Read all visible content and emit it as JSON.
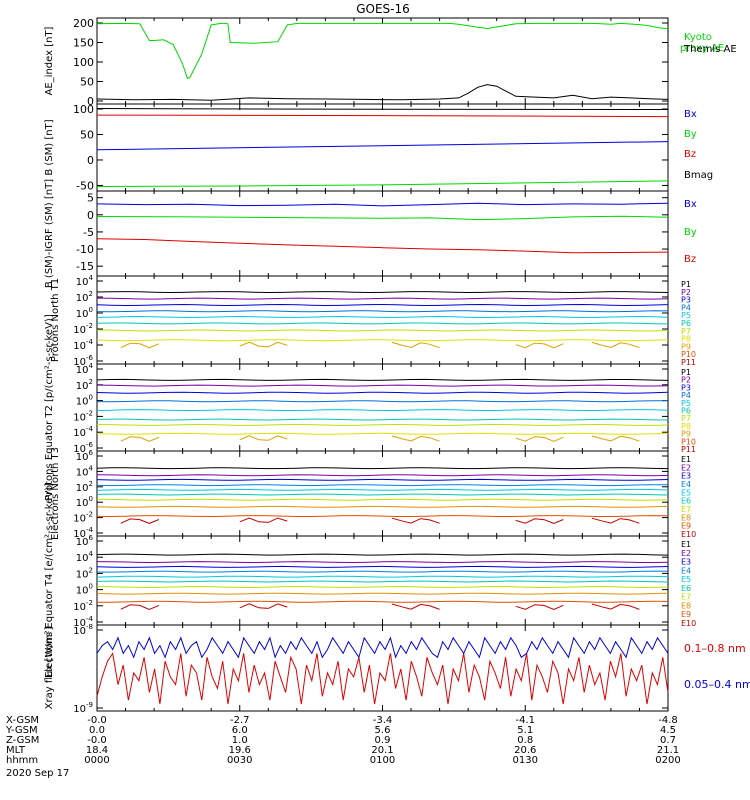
{
  "title": "GOES-16",
  "colors": {
    "green": "#00d800",
    "black": "#000000",
    "blue": "#0000e0",
    "red": "#e00000",
    "p_ch": [
      "#000000",
      "#7a00a0",
      "#0000e0",
      "#0070e0",
      "#00c8e0",
      "#00c8b0",
      "#c0e000",
      "#e0e000",
      "#e0a000",
      "#e05000",
      "#c00000"
    ],
    "e_ch": [
      "#000000",
      "#7a00a0",
      "#0000e0",
      "#0080e0",
      "#00c8e0",
      "#00c8b0",
      "#c0e000",
      "#e09000",
      "#e05000",
      "#c00000"
    ]
  },
  "chart_data": [
    {
      "type": "line",
      "ylabel": "AE_index [nT]",
      "ylim": [
        0,
        200
      ],
      "yticks": [
        "0",
        "50",
        "100",
        "150",
        "200"
      ],
      "legend": [
        "Kyoto proxy AE",
        "Themis AE"
      ],
      "series": [
        {
          "name": "Kyoto proxy AE",
          "color_key": "green",
          "x": [
            0,
            5,
            9,
            11,
            12,
            14,
            16,
            17,
            18,
            19,
            19.5,
            20,
            22,
            24,
            26,
            27,
            27.5,
            28,
            33,
            38,
            40,
            42,
            44,
            46,
            48,
            50,
            53,
            56,
            60,
            66,
            70,
            74,
            76,
            78,
            80,
            82,
            84,
            88,
            92,
            96,
            100,
            102,
            104,
            106,
            108,
            110,
            114,
            116,
            118,
            120
          ],
          "y": [
            198,
            199,
            198,
            155,
            155,
            157,
            145,
            120,
            95,
            58,
            60,
            72,
            120,
            195,
            199,
            199,
            198,
            150,
            148,
            152,
            195,
            199,
            199,
            199,
            199,
            199,
            199,
            199,
            199,
            199,
            199,
            199,
            197,
            193,
            189,
            186,
            190,
            198,
            199,
            199,
            199,
            199,
            199,
            198,
            197,
            199,
            196,
            193,
            188,
            185
          ]
        },
        {
          "name": "Themis AE",
          "color_key": "black",
          "x": [
            0,
            8,
            16,
            24,
            32,
            40,
            48,
            56,
            64,
            72,
            76,
            78,
            80,
            82,
            84,
            86,
            88,
            92,
            96,
            100,
            104,
            108,
            112,
            116,
            120
          ],
          "y": [
            5,
            3,
            4,
            2,
            8,
            6,
            5,
            4,
            3,
            5,
            8,
            20,
            35,
            42,
            38,
            25,
            12,
            10,
            8,
            15,
            6,
            10,
            8,
            6,
            4
          ]
        }
      ]
    },
    {
      "type": "line",
      "ylabel": "B (SM) [nT]",
      "ylim": [
        -55,
        100
      ],
      "yticks": [
        "-50",
        "0",
        "50",
        "100"
      ],
      "legend": [
        "Bx",
        "By",
        "Bz",
        "Bmag"
      ],
      "series": [
        {
          "name": "Bx",
          "color_key": "blue",
          "x": [
            0,
            120
          ],
          "y": [
            20,
            36
          ]
        },
        {
          "name": "By",
          "color_key": "green",
          "x": [
            0,
            30,
            60,
            90,
            120
          ],
          "y": [
            -52,
            -51,
            -49,
            -45,
            -41
          ]
        },
        {
          "name": "Bz",
          "color_key": "red",
          "x": [
            0,
            60,
            120
          ],
          "y": [
            88,
            87,
            85
          ]
        },
        {
          "name": "Bmag",
          "color_key": "black",
          "x": [
            0,
            60,
            120
          ],
          "y": [
            101,
            99.5,
            99
          ]
        }
      ]
    },
    {
      "type": "line",
      "ylabel": "B (SM)-IGRF (SM) [nT]",
      "ylim": [
        -17,
        5.5
      ],
      "yticks": [
        "-15",
        "-10",
        "-5",
        "0",
        "5"
      ],
      "legend": [
        "Bx",
        "By",
        "Bz"
      ],
      "series": [
        {
          "name": "Bx",
          "color_key": "blue",
          "x": [
            0,
            10,
            20,
            30,
            40,
            50,
            60,
            70,
            80,
            90,
            100,
            110,
            120
          ],
          "y": [
            3.2,
            3.0,
            3.1,
            2.7,
            2.8,
            3.1,
            2.6,
            3.0,
            3.4,
            3.0,
            3.2,
            3.1,
            3.4
          ]
        },
        {
          "name": "By",
          "color_key": "green",
          "x": [
            0,
            20,
            40,
            60,
            70,
            80,
            90,
            100,
            110,
            120
          ],
          "y": [
            -0.5,
            -0.6,
            -0.8,
            -1.0,
            -0.9,
            -1.4,
            -1.1,
            -0.6,
            -0.4,
            -0.7
          ]
        },
        {
          "name": "Bz",
          "color_key": "red",
          "x": [
            0,
            10,
            20,
            30,
            40,
            50,
            60,
            70,
            80,
            90,
            100,
            110,
            120
          ],
          "y": [
            -7.0,
            -7.2,
            -7.8,
            -8.3,
            -8.8,
            -9.2,
            -9.6,
            -10.0,
            -10.2,
            -10.6,
            -11.1,
            -11.0,
            -10.9
          ]
        }
      ]
    },
    {
      "type": "line",
      "ylabel": "Protons North T1",
      "yscale": "log",
      "ylim_exp": [
        -6,
        4
      ],
      "ytick_exp": [
        -6,
        -4,
        -2,
        0,
        2,
        4
      ],
      "legend": [
        "P1",
        "P2",
        "P3",
        "P4",
        "P5",
        "P6",
        "P7",
        "P8",
        "P9",
        "P10",
        "P11"
      ],
      "levels_exp": [
        2.6,
        1.8,
        1.0,
        0.2,
        -0.5,
        -1.3,
        -2.2,
        -3.4
      ]
    },
    {
      "type": "line",
      "ylabel": "Protons Equator T2 [p/(cm²-s-sr-keV)]",
      "yscale": "log",
      "ylim_exp": [
        -6,
        4
      ],
      "ytick_exp": [
        -6,
        -4,
        -2,
        0,
        2,
        4
      ],
      "legend": [
        "P1",
        "P2",
        "P3",
        "P4",
        "P5",
        "P6",
        "P7",
        "P8",
        "P9",
        "P10",
        "P11"
      ],
      "levels_exp": [
        2.6,
        1.9,
        1.0,
        -0.1,
        -1.2,
        -2.4,
        -3.1,
        -4.2
      ]
    },
    {
      "type": "line",
      "ylabel": "Electrons North T3",
      "yscale": "log",
      "ylim_exp": [
        -4,
        6
      ],
      "ytick_exp": [
        -4,
        -2,
        0,
        2,
        4,
        6
      ],
      "legend": [
        "E1",
        "E2",
        "E3",
        "E4",
        "E5",
        "E6",
        "E7",
        "E8",
        "E9",
        "E10"
      ],
      "levels_exp": [
        4.4,
        3.5,
        2.9,
        2.2,
        1.6,
        1.0,
        0.3,
        -0.6,
        -1.8
      ]
    },
    {
      "type": "line",
      "ylabel": "Electrons Equator T4 [e/(cm²-s-sr-keV)]",
      "yscale": "log",
      "ylim_exp": [
        -4,
        6
      ],
      "ytick_exp": [
        -4,
        -2,
        0,
        2,
        4,
        6
      ],
      "legend": [
        "E1",
        "E2",
        "E3",
        "E4",
        "E5",
        "E6",
        "E7",
        "E8",
        "E9",
        "E10"
      ],
      "levels_exp": [
        4.3,
        3.4,
        2.8,
        2.2,
        1.6,
        1.0,
        0.3,
        -0.5,
        -1.5
      ]
    },
    {
      "type": "line",
      "ylabel": "Xray flux [W/m²]",
      "yscale": "log",
      "ylim_exp": [
        -9,
        -8
      ],
      "ytick_exp": [
        -9,
        -8
      ],
      "legend": [
        "0.1–0.8 nm",
        "0.05–0.4 nm"
      ],
      "series": [
        {
          "name": "0.1–0.8 nm",
          "color_key": "red",
          "y_exp": [
            -8.85,
            -8.6,
            -8.4,
            -8.3,
            -8.7,
            -8.45,
            -8.9,
            -8.55,
            -8.65,
            -8.35,
            -8.8,
            -8.5,
            -8.95,
            -8.4,
            -8.6,
            -8.7,
            -8.3,
            -8.85,
            -8.45,
            -8.55,
            -8.9,
            -8.35,
            -8.6,
            -8.75,
            -8.4,
            -8.95,
            -8.5,
            -8.65,
            -8.3,
            -8.8,
            -8.45,
            -8.7,
            -8.55,
            -8.9,
            -8.4,
            -8.6,
            -8.8,
            -8.35,
            -8.5,
            -8.95,
            -8.45,
            -8.65,
            -8.3,
            -8.85,
            -8.55,
            -8.7,
            -8.4,
            -8.9,
            -8.5,
            -8.6,
            -8.35,
            -8.8,
            -8.45,
            -8.95,
            -8.55,
            -8.65,
            -8.3,
            -8.75,
            -8.5,
            -8.9,
            -8.4,
            -8.6,
            -8.85,
            -8.35,
            -8.55,
            -8.7,
            -8.45,
            -8.95,
            -8.5,
            -8.65,
            -8.3,
            -8.8,
            -8.45,
            -8.6,
            -8.9,
            -8.4,
            -8.55,
            -8.75,
            -8.35,
            -8.85,
            -8.5,
            -8.65,
            -8.3,
            -8.9,
            -8.45,
            -8.6,
            -8.8,
            -8.4,
            -8.55,
            -8.95,
            -8.5,
            -8.65,
            -8.35,
            -8.8,
            -8.45,
            -8.7,
            -8.55,
            -8.9,
            -8.4,
            -8.6,
            -8.3,
            -8.85,
            -8.5,
            -8.65,
            -8.45,
            -8.95,
            -8.55,
            -8.7,
            -8.35,
            -8.8
          ]
        },
        {
          "name": "0.05–0.4 nm",
          "color_key": "blue",
          "y_exp": [
            -8.3,
            -8.2,
            -8.15,
            -8.25,
            -8.1,
            -8.3,
            -8.2,
            -8.35,
            -8.15,
            -8.25,
            -8.1,
            -8.3,
            -8.2,
            -8.35,
            -8.15,
            -8.25,
            -8.1,
            -8.3,
            -8.2,
            -8.15,
            -8.35,
            -8.25,
            -8.1,
            -8.2,
            -8.3,
            -8.15,
            -8.25,
            -8.35,
            -8.1,
            -8.2,
            -8.3,
            -8.15,
            -8.25,
            -8.1,
            -8.35,
            -8.2,
            -8.3,
            -8.15,
            -8.25,
            -8.1,
            -8.2,
            -8.3,
            -8.15,
            -8.35,
            -8.25,
            -8.1,
            -8.2,
            -8.3,
            -8.15,
            -8.25,
            -8.35,
            -8.1,
            -8.2,
            -8.3,
            -8.15,
            -8.25,
            -8.1,
            -8.35,
            -8.2,
            -8.3,
            -8.15,
            -8.25,
            -8.1,
            -8.2,
            -8.3,
            -8.35,
            -8.15,
            -8.25,
            -8.1,
            -8.2,
            -8.3,
            -8.15,
            -8.25,
            -8.35,
            -8.1,
            -8.2,
            -8.3,
            -8.15,
            -8.25,
            -8.1,
            -8.2,
            -8.35,
            -8.3,
            -8.15,
            -8.25,
            -8.1,
            -8.2,
            -8.3,
            -8.15,
            -8.25,
            -8.35,
            -8.1,
            -8.2,
            -8.3,
            -8.15,
            -8.25,
            -8.1,
            -8.2,
            -8.3,
            -8.15,
            -8.25,
            -8.35,
            -8.1,
            -8.2,
            -8.3,
            -8.15,
            -8.25,
            -8.1,
            -8.2,
            -8.3
          ]
        }
      ]
    }
  ],
  "x_axis": {
    "rows": [
      {
        "label": "X-GSM",
        "values": [
          "-0.0",
          "-2.7",
          "-3.4",
          "-4.1",
          "-4.8"
        ]
      },
      {
        "label": "Y-GSM",
        "values": [
          "0.0",
          "6.0",
          "5.6",
          "5.1",
          "4.5"
        ]
      },
      {
        "label": "Z-GSM",
        "values": [
          "-0.0",
          "1.0",
          "0.9",
          "0.8",
          "0.7"
        ]
      },
      {
        "label": "MLT",
        "values": [
          "18.4",
          "19.6",
          "20.1",
          "20.6",
          "21.1"
        ]
      },
      {
        "label": "hhmm",
        "values": [
          "0000",
          "0030",
          "0100",
          "0130",
          "0200"
        ]
      }
    ],
    "date": "2020 Sep 17"
  }
}
